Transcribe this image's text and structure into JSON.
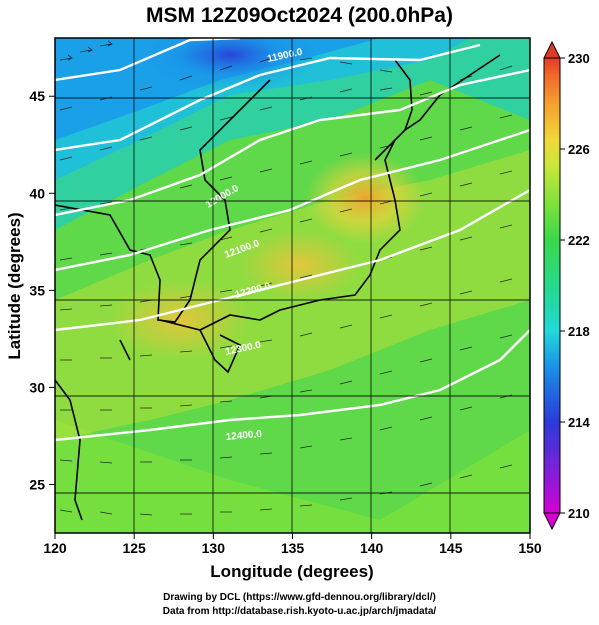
{
  "title": "MSM 12Z09Oct2024 (200.0hPa)",
  "x_axis": {
    "label": "Longitude (degrees)",
    "min": 120,
    "max": 150,
    "ticks": [
      "120",
      "125",
      "130",
      "135",
      "140",
      "145",
      "150"
    ]
  },
  "y_axis": {
    "label": "Latitude  (degrees)",
    "min": 22.5,
    "max": 48,
    "ticks": [
      "25",
      "30",
      "35",
      "40",
      "45"
    ]
  },
  "colorbar": {
    "min": 210,
    "max": 230,
    "ticks": [
      "210",
      "214",
      "218",
      "222",
      "226",
      "230"
    ],
    "colors": [
      "#d400d4",
      "#7a22d8",
      "#2a3ad8",
      "#1a90e8",
      "#22d8d8",
      "#26d88a",
      "#3ad84a",
      "#7ee23a",
      "#c8e63a",
      "#f0d83a",
      "#f5a030",
      "#f06a2a",
      "#e23a2a"
    ]
  },
  "contour_labels": [
    "11900.0",
    "12000.0",
    "12100.0",
    "12200.0",
    "12300.0",
    "12400.0"
  ],
  "credits": {
    "line1": "Drawing by DCL (https://www.gfd-dennou.org/library/dcl/)",
    "line2": "Data from http://database.rish.kyoto-u.ac.jp/arch/jmadata/"
  }
}
